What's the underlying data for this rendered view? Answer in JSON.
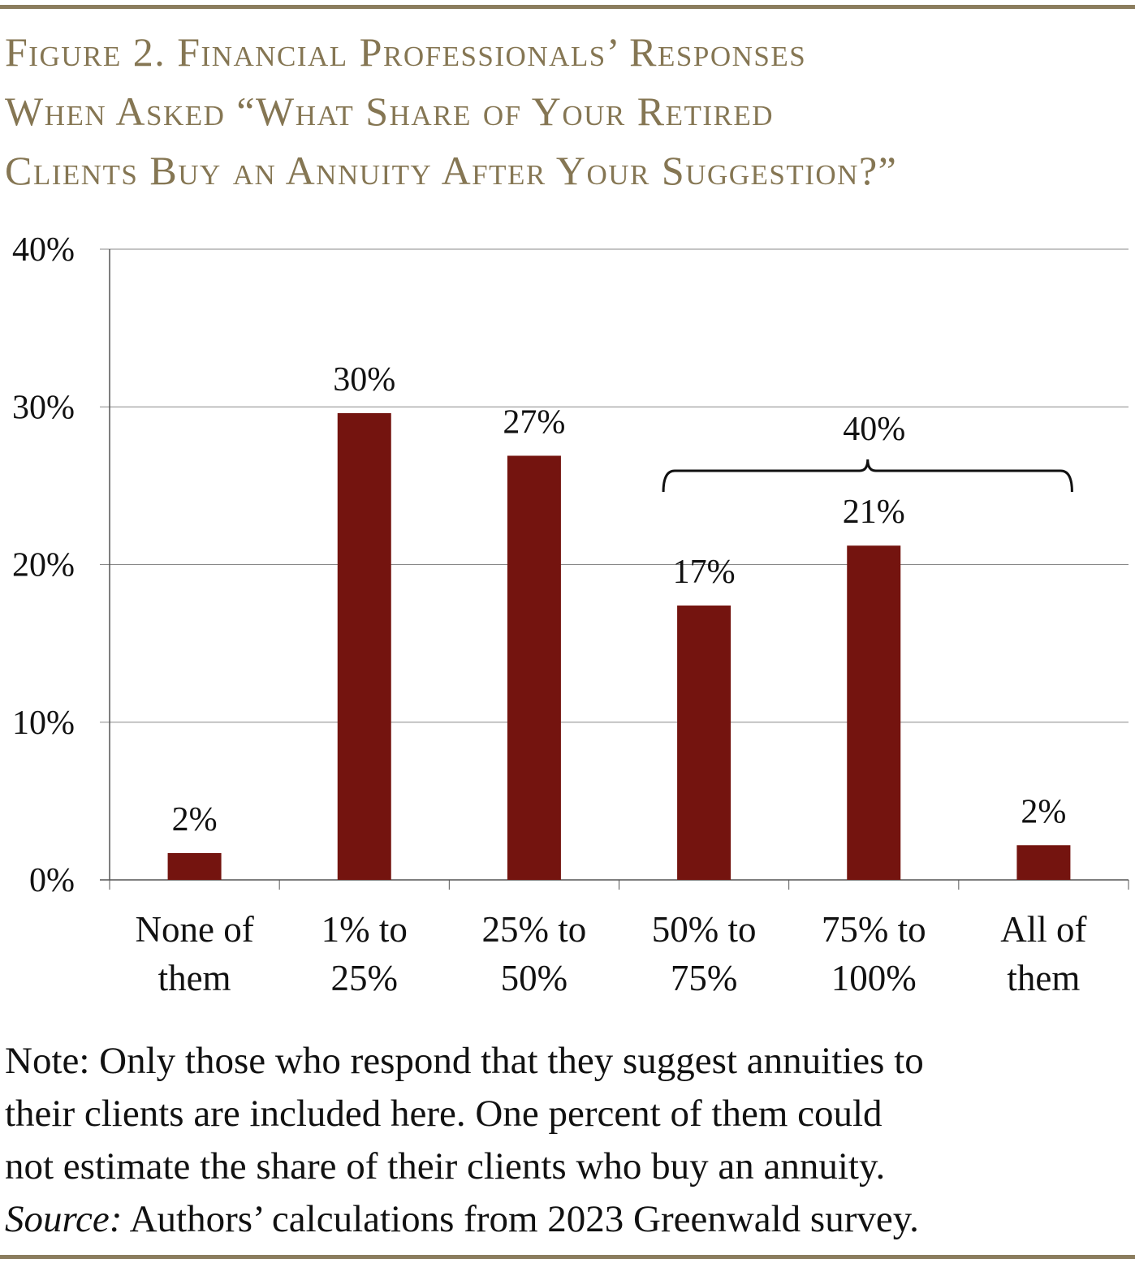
{
  "title_lines": [
    "Figure 2. Financial Professionals’ Responses",
    "When Asked “What Share of Your Retired",
    "Clients Buy an Annuity After Your Suggestion?”"
  ],
  "chart_data": {
    "type": "bar",
    "categories": [
      [
        "None of",
        "them"
      ],
      [
        "1% to",
        "25%"
      ],
      [
        "25% to",
        "50%"
      ],
      [
        "50% to",
        "75%"
      ],
      [
        "75% to",
        "100%"
      ],
      [
        "All of",
        "them"
      ]
    ],
    "values": [
      1.7,
      29.6,
      26.9,
      17.4,
      21.2,
      2.2
    ],
    "data_labels": [
      "2%",
      "30%",
      "27%",
      "17%",
      "21%",
      "2%"
    ],
    "bracket": {
      "from_category": 3,
      "to_category": 5,
      "label": "40%"
    },
    "ylim": [
      0,
      40
    ],
    "yticks": [
      "0%",
      "10%",
      "20%",
      "30%",
      "40%"
    ],
    "grid": true,
    "bar_color": "#74140f"
  },
  "note": {
    "lines": [
      "Note: Only those who respond that they suggest annuities to",
      "their clients are included here.  One percent of them could",
      "not estimate the share of their clients who buy an annuity."
    ],
    "source_label": "Source:",
    "source_text": " Authors’ calculations from 2023 Greenwald survey."
  }
}
